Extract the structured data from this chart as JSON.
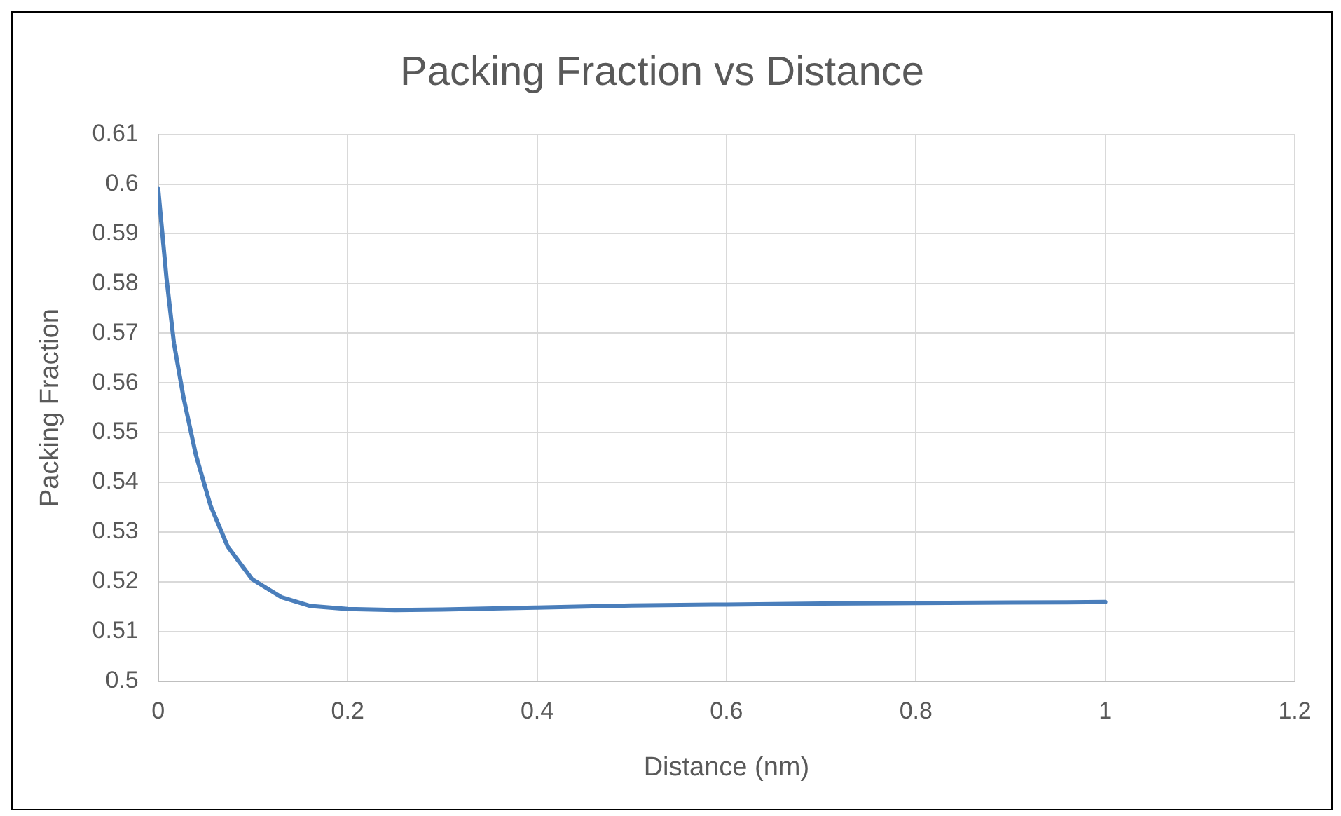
{
  "chart_data": {
    "type": "line",
    "title": "Packing Fraction vs Distance",
    "xlabel": "Distance (nm)",
    "ylabel": "Packing Fraction",
    "series": [
      {
        "color": "#4a7ebb",
        "x": [
          0,
          0.0088,
          0.0166,
          0.0268,
          0.0398,
          0.0553,
          0.0733,
          0.0992,
          0.13,
          0.161,
          0.2,
          0.25,
          0.3,
          0.4,
          0.5,
          0.6,
          0.7,
          0.8,
          0.9,
          1
        ],
        "values": [
          0.599,
          0.581,
          0.568,
          0.557,
          0.5455,
          0.5353,
          0.5271,
          0.5205,
          0.5169,
          0.5151,
          0.5145,
          0.5143,
          0.5144,
          0.5148,
          0.5152,
          0.5154,
          0.5156,
          0.5157,
          0.5158,
          0.5159
        ]
      }
    ],
    "xlim": [
      0,
      1.2
    ],
    "xticks": [
      0,
      0.2,
      0.4,
      0.6,
      0.8,
      1,
      1.2
    ],
    "ylim": [
      0.5,
      0.61
    ],
    "yticks": [
      0.5,
      0.51,
      0.52,
      0.53,
      0.54,
      0.55,
      0.56,
      0.57,
      0.58,
      0.59,
      0.6,
      0.61
    ],
    "grid": true,
    "legend": false,
    "marker": "none",
    "line_style": "solid"
  }
}
